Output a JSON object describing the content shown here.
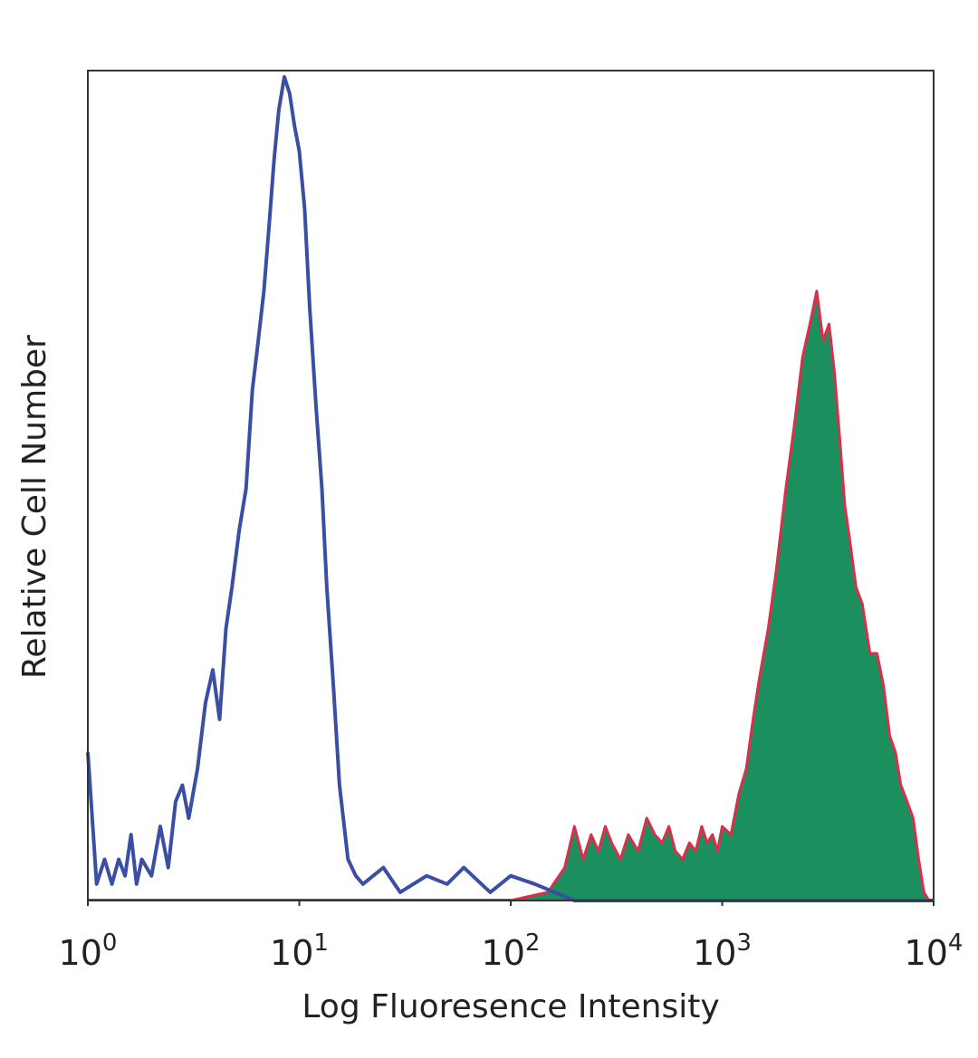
{
  "chart_data": {
    "type": "area",
    "title": "",
    "xlabel": "Log Fluoresence Intensity",
    "ylabel": "Relative Cell Number",
    "x_scale": "log10",
    "xlim": [
      1,
      10000
    ],
    "ylim": [
      0,
      100
    ],
    "grid": false,
    "legend": "none",
    "x_ticks": [
      {
        "value": 1,
        "base": "10",
        "exp": "0"
      },
      {
        "value": 10,
        "base": "10",
        "exp": "1"
      },
      {
        "value": 100,
        "base": "10",
        "exp": "2"
      },
      {
        "value": 1000,
        "base": "10",
        "exp": "3"
      },
      {
        "value": 10000,
        "base": "10",
        "exp": "4"
      }
    ],
    "series": [
      {
        "style": "outline",
        "color": "#3a4fa3",
        "x": [
          1.0,
          1.1,
          1.2,
          1.3,
          1.4,
          1.5,
          1.6,
          1.7,
          1.8,
          2.0,
          2.2,
          2.4,
          2.6,
          2.8,
          3.0,
          3.3,
          3.6,
          3.9,
          4.2,
          4.5,
          4.8,
          5.2,
          5.6,
          6.0,
          6.4,
          6.8,
          7.2,
          7.6,
          8.0,
          8.5,
          9.0,
          9.5,
          10.0,
          10.6,
          11.2,
          12.0,
          12.8,
          13.5,
          14.5,
          15.5,
          17.0,
          18.5,
          20.0,
          25.0,
          30.0,
          40.0,
          50.0,
          60.0,
          80.0,
          100.0,
          130.0,
          200.0,
          400.0,
          1000.0,
          10000.0
        ],
        "values": [
          18,
          2,
          5,
          2,
          5,
          3,
          8,
          2,
          5,
          3,
          9,
          4,
          12,
          14,
          10,
          16,
          24,
          28,
          22,
          33,
          38,
          45,
          50,
          62,
          68,
          74,
          82,
          90,
          96,
          100,
          98,
          94,
          91,
          84,
          72,
          60,
          50,
          38,
          26,
          14,
          5,
          3,
          2,
          4,
          1,
          3,
          2,
          4,
          1,
          3,
          2,
          0,
          0,
          0,
          0
        ]
      },
      {
        "style": "filled",
        "color": "#1b8f5e",
        "outline_color": "#d8304a",
        "x": [
          100,
          150,
          180,
          200,
          220,
          240,
          260,
          280,
          300,
          330,
          360,
          400,
          440,
          480,
          520,
          560,
          600,
          650,
          700,
          750,
          800,
          850,
          900,
          950,
          1000,
          1100,
          1200,
          1300,
          1400,
          1500,
          1650,
          1800,
          2000,
          2200,
          2400,
          2600,
          2800,
          3000,
          3200,
          3400,
          3600,
          3800,
          4000,
          4300,
          4600,
          5000,
          5400,
          5800,
          6200,
          6600,
          7000,
          7500,
          8000,
          8500,
          9000,
          9500
        ],
        "values": [
          0,
          1,
          4,
          9,
          5,
          8,
          6,
          9,
          7,
          5,
          8,
          6,
          10,
          8,
          7,
          9,
          6,
          5,
          7,
          6,
          9,
          7,
          8,
          6,
          9,
          8,
          13,
          16,
          22,
          27,
          33,
          40,
          50,
          58,
          66,
          70,
          74,
          68,
          70,
          64,
          56,
          48,
          44,
          38,
          36,
          30,
          30,
          26,
          20,
          18,
          14,
          12,
          10,
          5,
          1,
          0
        ]
      }
    ]
  }
}
